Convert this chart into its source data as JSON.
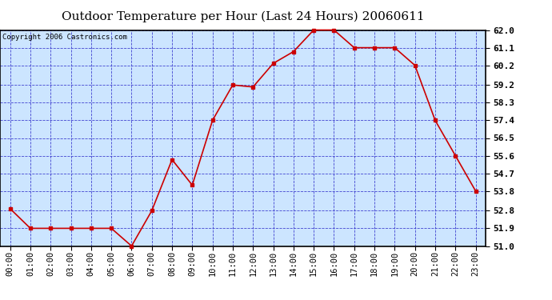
{
  "title": "Outdoor Temperature per Hour (Last 24 Hours) 20060611",
  "copyright": "Copyright 2006 Castronics.com",
  "hours": [
    "00:00",
    "01:00",
    "02:00",
    "03:00",
    "04:00",
    "05:00",
    "06:00",
    "07:00",
    "08:00",
    "09:00",
    "10:00",
    "11:00",
    "12:00",
    "13:00",
    "14:00",
    "15:00",
    "16:00",
    "17:00",
    "18:00",
    "19:00",
    "20:00",
    "21:00",
    "22:00",
    "23:00"
  ],
  "values": [
    52.9,
    51.9,
    51.9,
    51.9,
    51.9,
    51.9,
    51.0,
    52.8,
    55.4,
    54.1,
    57.4,
    59.2,
    59.1,
    60.3,
    60.9,
    62.0,
    62.0,
    61.1,
    61.1,
    61.1,
    60.2,
    57.4,
    55.6,
    53.8
  ],
  "ylim": [
    51.0,
    62.0
  ],
  "yticks": [
    51.0,
    51.9,
    52.8,
    53.8,
    54.7,
    55.6,
    56.5,
    57.4,
    58.3,
    59.2,
    60.2,
    61.1,
    62.0
  ],
  "line_color": "#cc0000",
  "marker_color": "#cc0000",
  "bg_color": "#cce5ff",
  "border_color": "#000000",
  "grid_color": "#3333cc",
  "title_fontsize": 11,
  "tick_fontsize": 7.5,
  "copyright_fontsize": 6.5
}
